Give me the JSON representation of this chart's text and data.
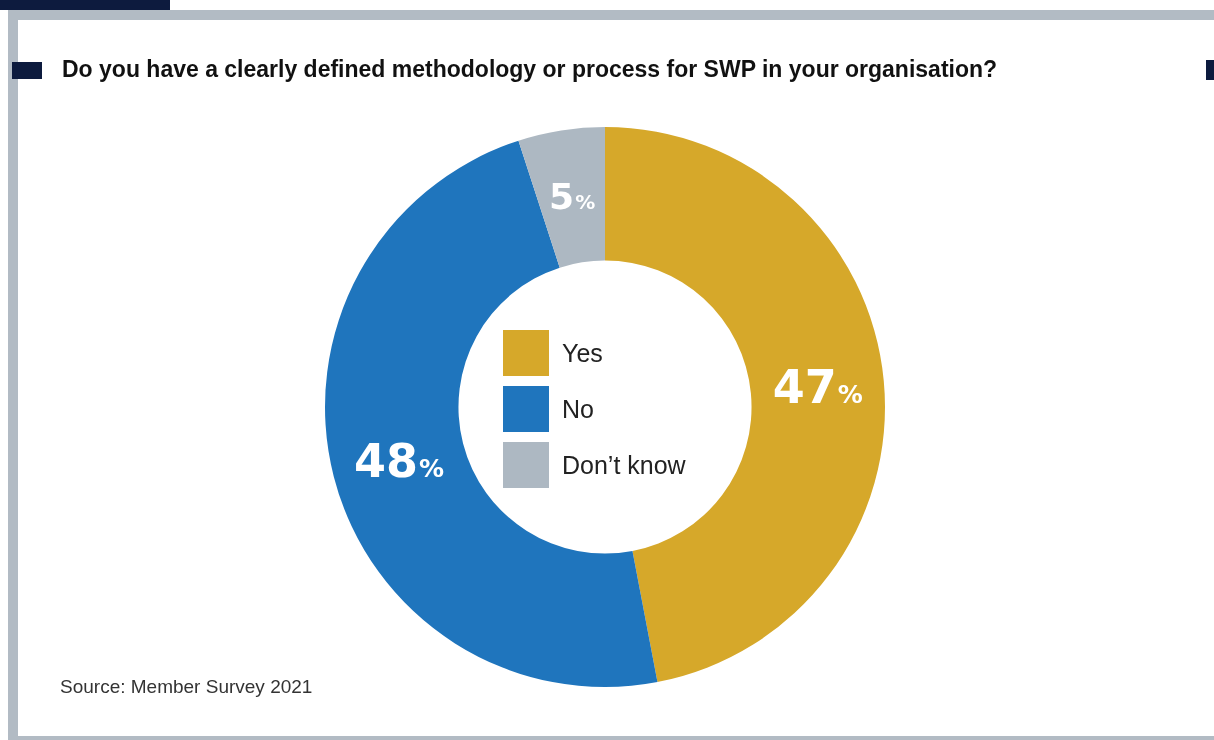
{
  "chart_data": {
    "type": "donut",
    "title": "Do you have a clearly defined methodology or process for SWP in your organisation?",
    "categories": [
      "Yes",
      "No",
      "Don’t know"
    ],
    "values": [
      47,
      48,
      5
    ],
    "colors": [
      "#d6a82a",
      "#1f75bd",
      "#adb8c2"
    ],
    "value_labels": [
      "47%",
      "48%",
      "5%"
    ],
    "legend": "center",
    "annotations": [
      "Source: Member Survey 2021"
    ]
  }
}
